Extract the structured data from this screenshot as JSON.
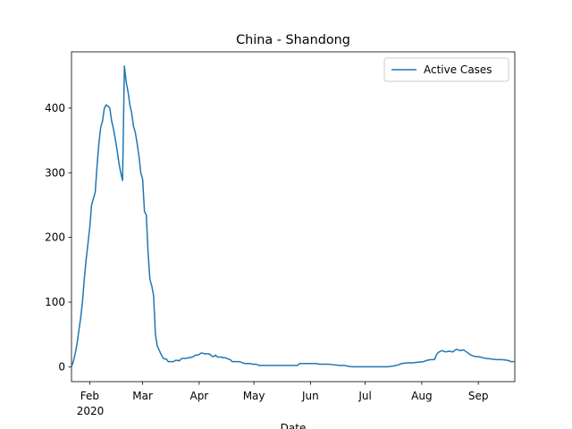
{
  "chart_data": {
    "type": "line",
    "title": "China - Shandong",
    "xlabel": "Date",
    "x_year_label": "2020",
    "x": [
      22,
      23,
      24,
      25,
      26,
      27,
      28,
      29,
      30,
      31,
      32,
      33,
      34,
      35,
      36,
      37,
      38,
      39,
      40,
      41,
      42,
      43,
      44,
      45,
      46,
      47,
      48,
      49,
      50,
      51,
      52,
      53,
      54,
      55,
      56,
      57,
      58,
      59,
      60,
      61,
      62,
      63,
      64,
      65,
      66,
      67,
      68,
      69,
      70,
      71,
      72,
      73,
      74,
      75,
      76,
      77,
      78,
      79,
      80,
      81,
      82,
      83,
      84,
      85,
      86,
      87,
      88,
      89,
      90,
      91,
      92,
      93,
      94,
      95,
      96,
      97,
      98,
      99,
      100,
      101,
      102,
      103,
      104,
      105,
      106,
      107,
      108,
      109,
      110,
      111,
      112,
      113,
      114,
      115,
      116,
      117,
      118,
      119,
      120,
      121,
      122,
      123,
      124,
      125,
      126,
      130,
      135,
      140,
      146,
      147,
      152,
      156,
      158,
      163,
      166,
      169,
      172,
      173,
      176,
      185,
      195,
      198,
      200,
      203,
      206,
      209,
      212,
      215,
      217,
      219,
      221,
      222,
      223,
      225,
      227,
      229,
      231,
      233,
      235,
      237,
      239,
      241,
      243,
      246,
      249,
      252,
      255,
      258,
      261,
      263,
      265
    ],
    "series": [
      {
        "name": "Active Cases",
        "color": "#1f77b4",
        "values": [
          0,
          8,
          20,
          35,
          55,
          75,
          100,
          135,
          165,
          190,
          215,
          250,
          260,
          270,
          310,
          345,
          370,
          380,
          400,
          405,
          403,
          400,
          380,
          368,
          352,
          335,
          315,
          300,
          288,
          465,
          440,
          425,
          405,
          392,
          372,
          362,
          345,
          325,
          300,
          290,
          240,
          235,
          175,
          135,
          125,
          110,
          50,
          32,
          26,
          20,
          14,
          12,
          12,
          8,
          8,
          8,
          8,
          10,
          10,
          9,
          12,
          13,
          13,
          13,
          14,
          14,
          15,
          16,
          18,
          18,
          19,
          21,
          21,
          20,
          20,
          20,
          19,
          16,
          16,
          18,
          15,
          15,
          15,
          14,
          14,
          13,
          12,
          11,
          8,
          8,
          8,
          8,
          8,
          7,
          6,
          5,
          5,
          5,
          5,
          4,
          4,
          4,
          3,
          2,
          2,
          2,
          2,
          2,
          2,
          5,
          5,
          5,
          4,
          4,
          3,
          2,
          2,
          1,
          0,
          0,
          0,
          1,
          2,
          5,
          6,
          6,
          7,
          8,
          10,
          11,
          11,
          18,
          22,
          25,
          23,
          24,
          23,
          27,
          25,
          26,
          22,
          18,
          16,
          15,
          13,
          12,
          11,
          11,
          10,
          8,
          8
        ]
      }
    ],
    "xlim": [
      22,
      265
    ],
    "xticks": [
      {
        "value": 32,
        "label": "Feb"
      },
      {
        "value": 61,
        "label": "Mar"
      },
      {
        "value": 92,
        "label": "Apr"
      },
      {
        "value": 122,
        "label": "May"
      },
      {
        "value": 153,
        "label": "Jun"
      },
      {
        "value": 183,
        "label": "Jul"
      },
      {
        "value": 214,
        "label": "Aug"
      },
      {
        "value": 245,
        "label": "Sep"
      }
    ],
    "ylim": [
      -23,
      487
    ],
    "yticks": [
      0,
      100,
      200,
      300,
      400
    ],
    "grid": false,
    "legend": "upper right"
  }
}
